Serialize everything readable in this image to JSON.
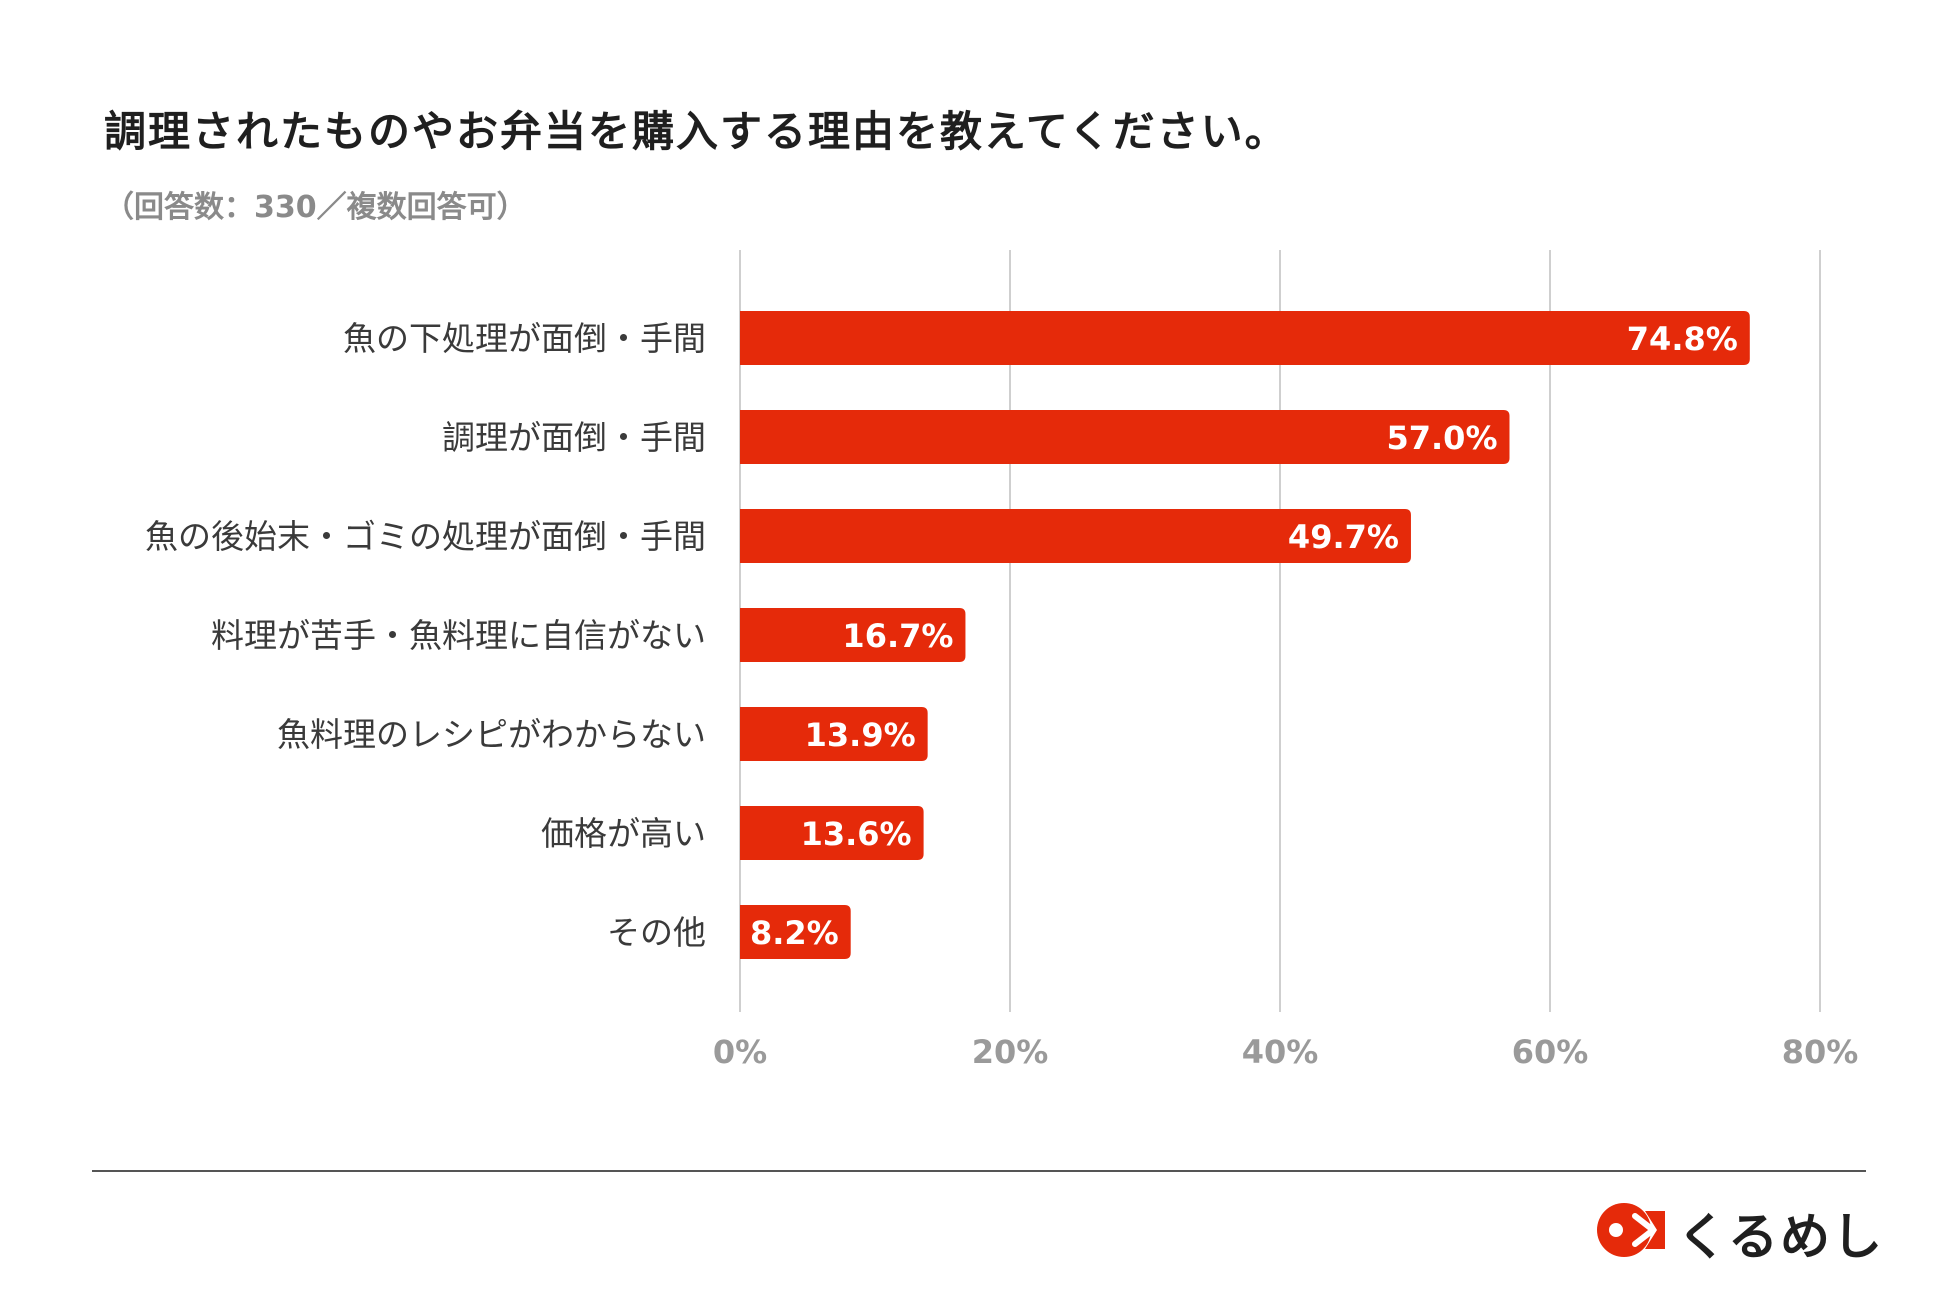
{
  "chart_data": {
    "type": "bar",
    "orientation": "horizontal",
    "title": "調理されたものやお弁当を購入する理由を教えてください。",
    "subtitle": "（回答数：330／複数回答可）",
    "categories": [
      "魚の下処理が面倒・手間",
      "調理が面倒・手間",
      "魚の後始末・ゴミの処理が面倒・手間",
      "料理が苦手・魚料理に自信がない",
      "魚料理のレシピがわからない",
      "価格が高い",
      "その他"
    ],
    "values": [
      74.8,
      57.0,
      49.7,
      16.7,
      13.9,
      13.6,
      8.2
    ],
    "value_labels": [
      "74.8%",
      "57.0%",
      "49.7%",
      "16.7%",
      "13.9%",
      "13.6%",
      "8.2%"
    ],
    "xlim": [
      0,
      80
    ],
    "xticks": [
      0,
      20,
      40,
      60,
      80
    ],
    "xtick_labels": [
      "0%",
      "20%",
      "40%",
      "60%",
      "80%"
    ],
    "xlabel": "",
    "ylabel": "",
    "grid": true,
    "bar_color": "#e52a0a",
    "grid_color": "#cfcfcf"
  },
  "brand": {
    "name": "くるめし",
    "logo_icon": "fish-logo-icon",
    "color": "#e52a0a"
  }
}
